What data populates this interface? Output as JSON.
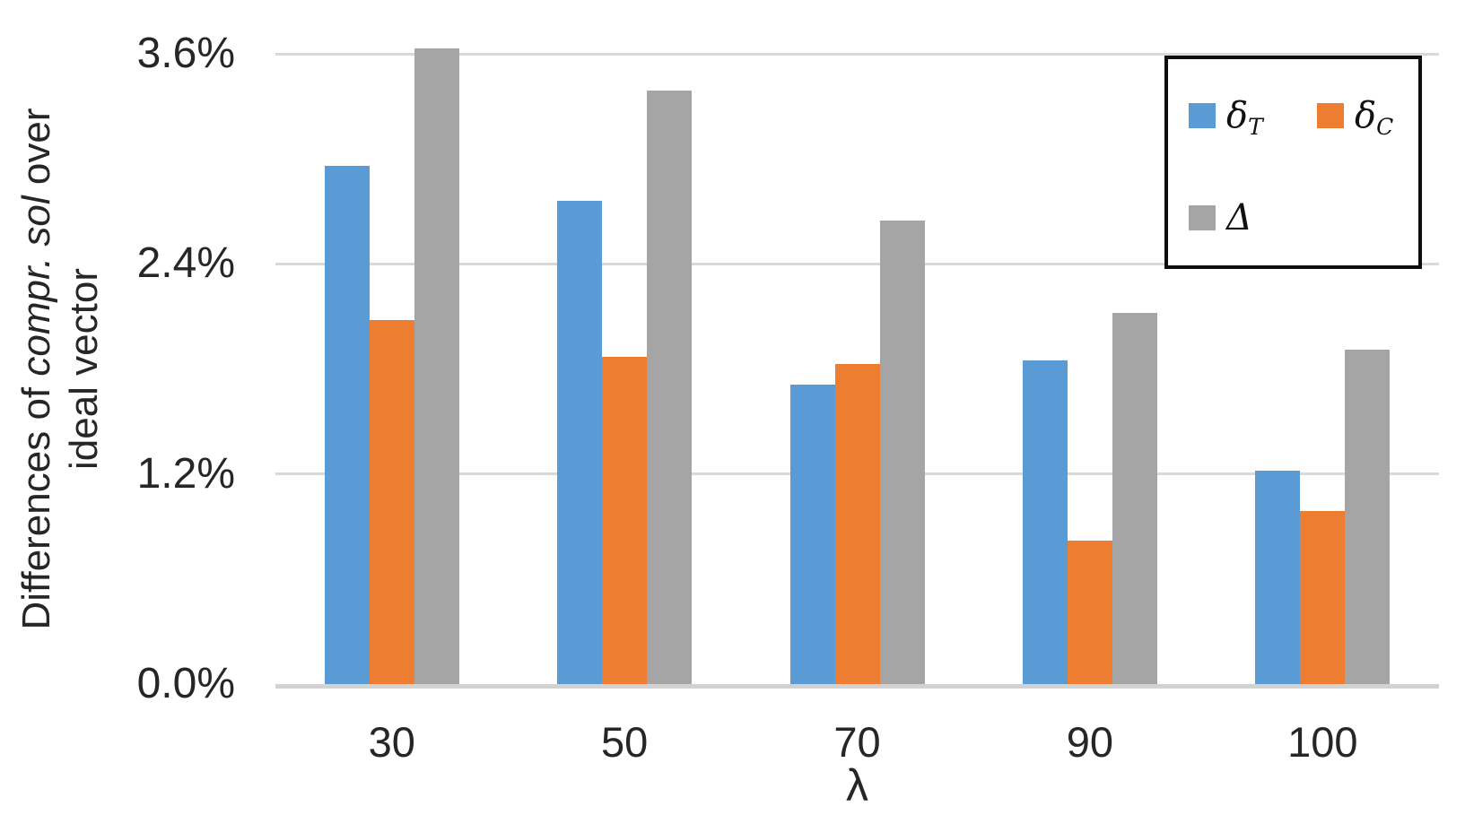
{
  "chart_data": {
    "type": "bar",
    "title": "",
    "categories": [
      "30",
      "50",
      "70",
      "90",
      "100"
    ],
    "series": [
      {
        "name": "delta-T",
        "symbol": "δ",
        "subscript": "T",
        "color": "#5B9BD5",
        "values": [
          2.96,
          2.76,
          1.71,
          1.85,
          1.22
        ]
      },
      {
        "name": "delta-C",
        "symbol": "δ",
        "subscript": "C",
        "color": "#ED7D31",
        "values": [
          2.08,
          1.87,
          1.83,
          0.82,
          0.99
        ]
      },
      {
        "name": "Delta",
        "symbol": "Δ",
        "subscript": "",
        "color": "#A5A5A5",
        "values": [
          3.63,
          3.39,
          2.65,
          2.12,
          1.91
        ]
      }
    ],
    "unit": "%",
    "yticks": [
      {
        "value": 0.0,
        "label": "0.0%"
      },
      {
        "value": 1.2,
        "label": "1.2%"
      },
      {
        "value": 2.4,
        "label": "2.4%"
      },
      {
        "value": 3.6,
        "label": "3.6%"
      }
    ],
    "ylim": [
      0,
      3.66
    ],
    "grid": true,
    "legend_position": "top-right",
    "gridline_color": "#D9D9D9",
    "axis_text_color": "#262626",
    "ylabel": {
      "line1_prefix": "Differences of ",
      "line1_italic": "compr. sol",
      "line1_suffix": " over",
      "line2": "ideal vector",
      "full_text": "Differences of compr. sol over ideal vector"
    },
    "xlabel": "λ"
  }
}
